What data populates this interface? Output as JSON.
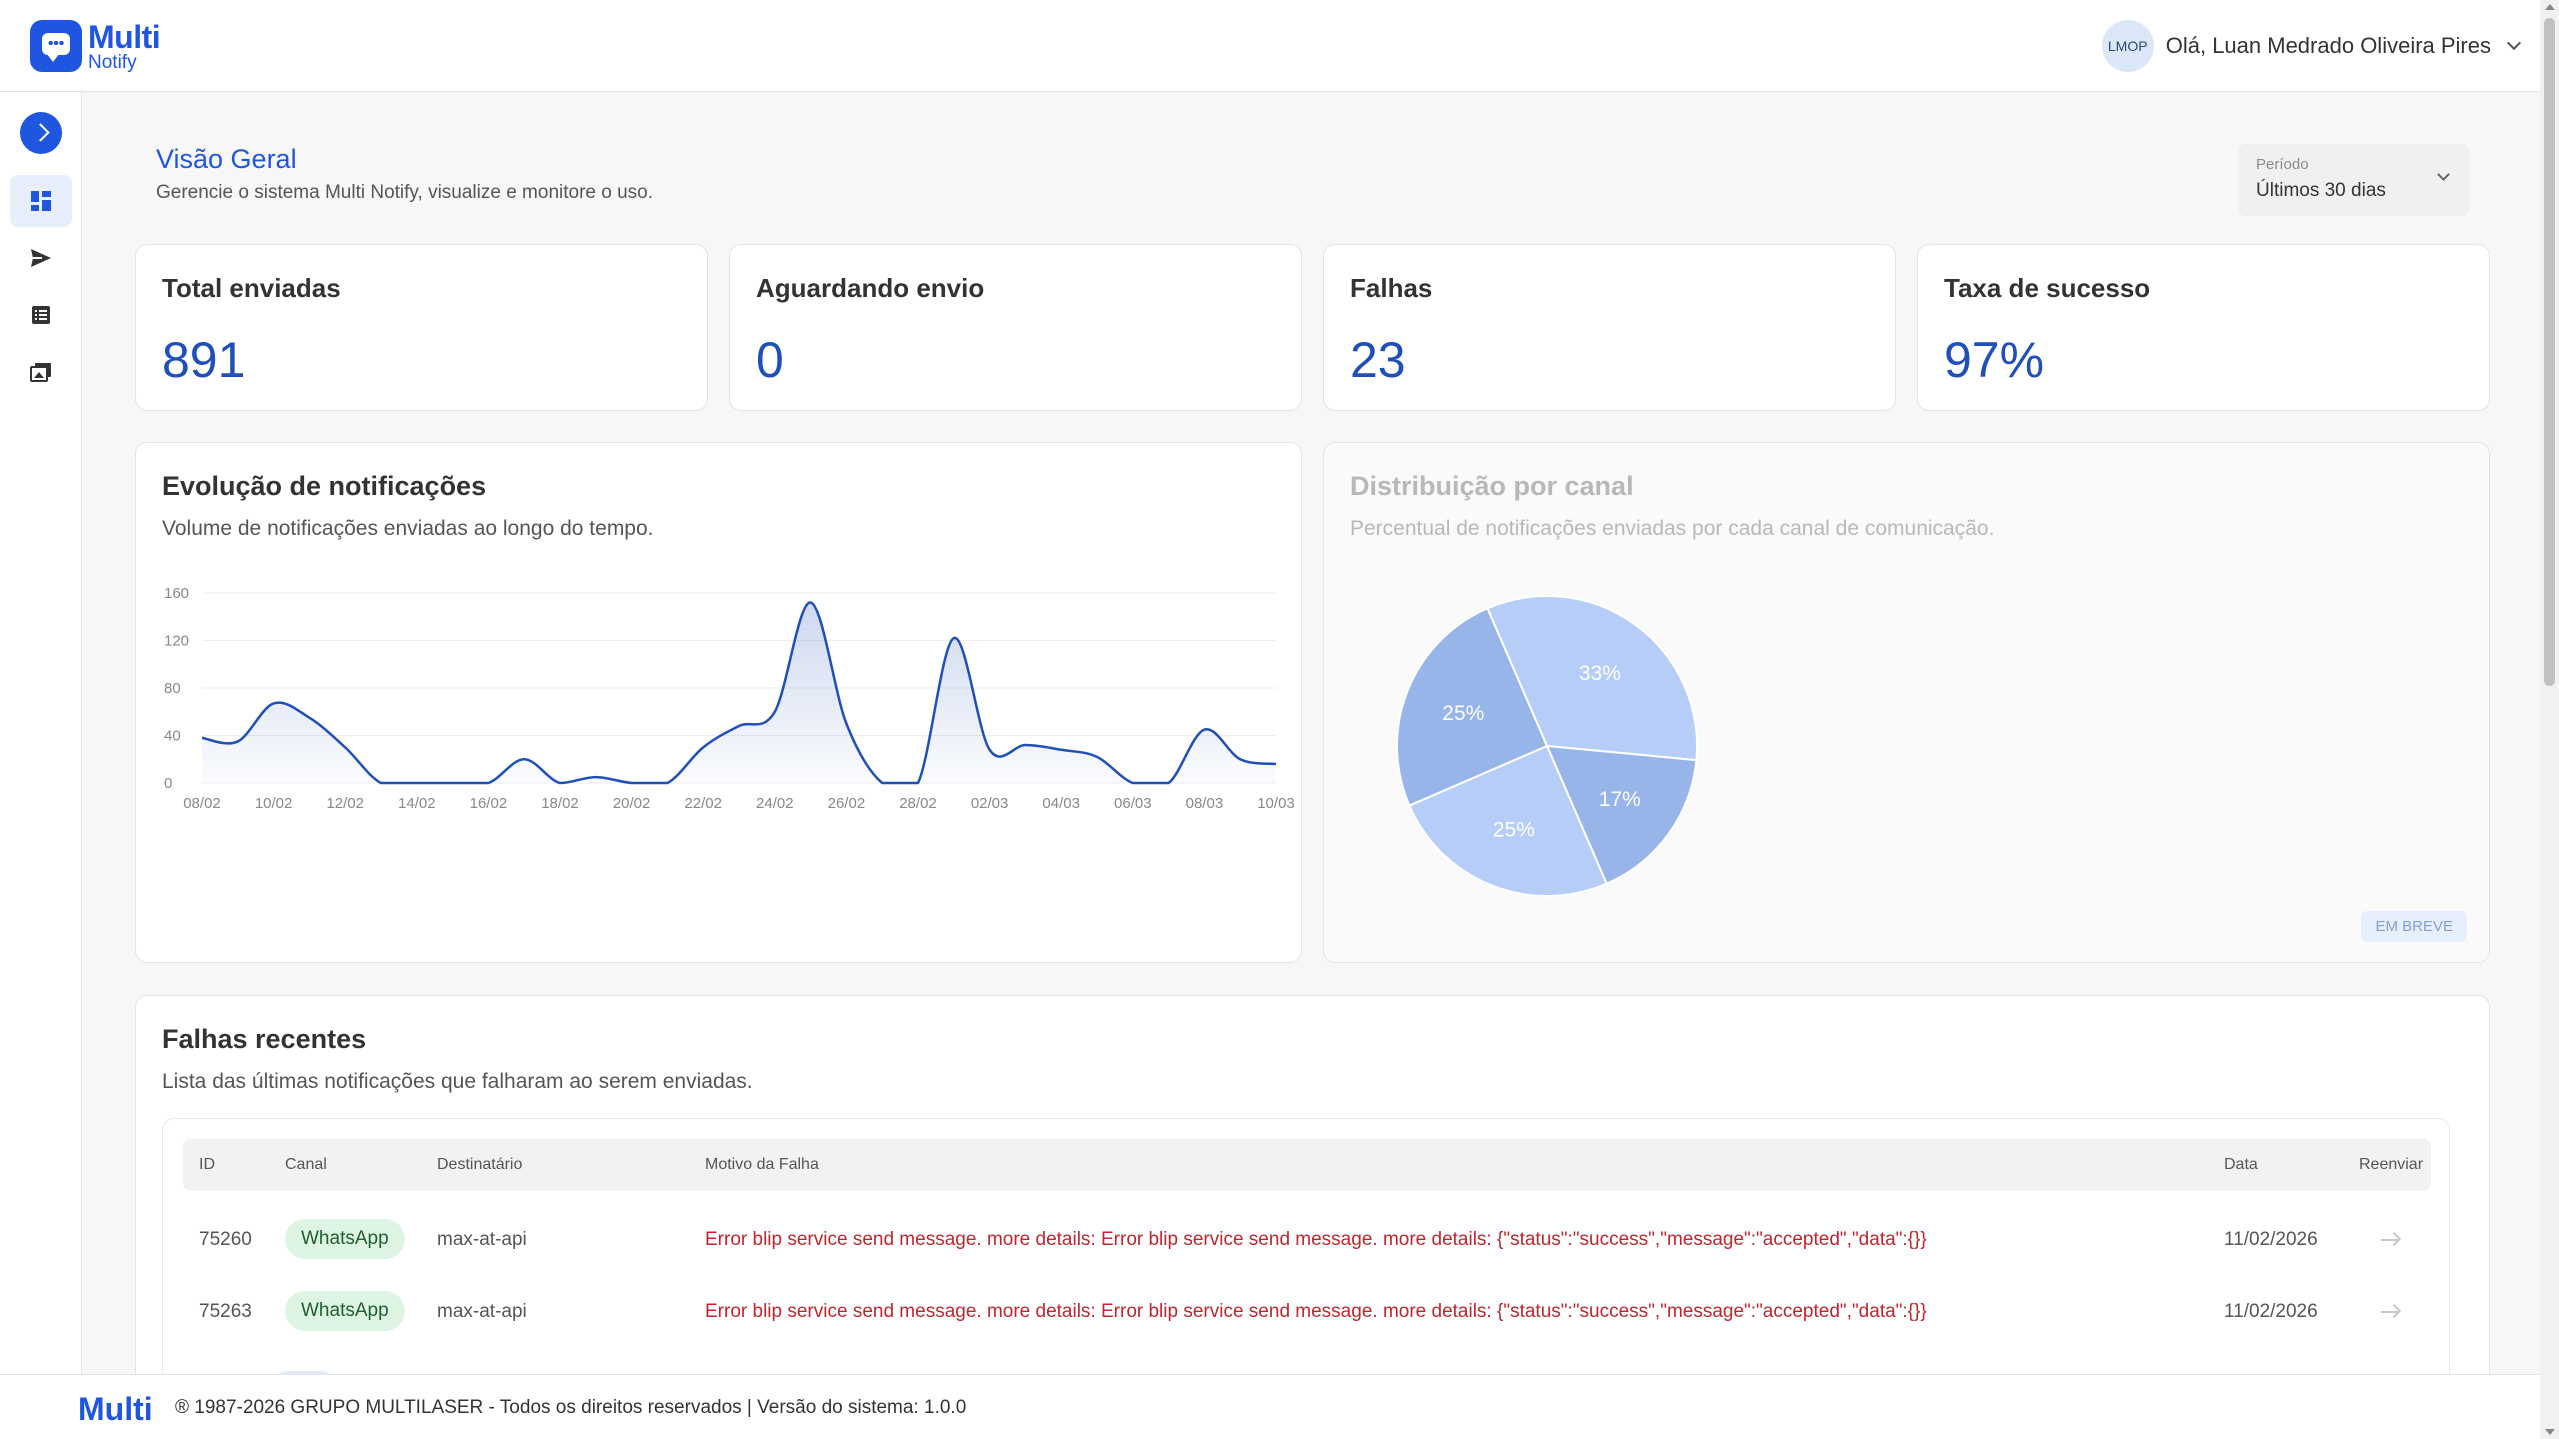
{
  "brand": {
    "name_line1": "Multi",
    "name_line2": "Notify",
    "accent": "#1f56e0"
  },
  "header": {
    "avatar_initials": "LMOP",
    "greeting": "Olá, Luan Medrado Oliveira Pires"
  },
  "sidebar": {
    "items": [
      {
        "icon": "dashboard-icon",
        "active": true
      },
      {
        "icon": "send-icon",
        "active": false
      },
      {
        "icon": "list-icon",
        "active": false
      },
      {
        "icon": "templates-icon",
        "active": false
      }
    ]
  },
  "page": {
    "title": "Visão Geral",
    "subtitle": "Gerencie o sistema Multi Notify, visualize e monitore o uso."
  },
  "period": {
    "label": "Período",
    "value": "Últimos 30 dias"
  },
  "stats": [
    {
      "title": "Total enviadas",
      "value": "891"
    },
    {
      "title": "Aguardando envio",
      "value": "0"
    },
    {
      "title": "Falhas",
      "value": "23"
    },
    {
      "title": "Taxa de sucesso",
      "value": "97%"
    }
  ],
  "evolution": {
    "title": "Evolução de notificações",
    "subtitle": "Volume de notificações enviadas ao longo do tempo."
  },
  "distribution": {
    "title": "Distribuição por canal",
    "subtitle": "Percentual de notificações enviadas por cada canal de comunicação.",
    "badge": "EM BREVE"
  },
  "chart_data": [
    {
      "type": "area",
      "title": "Evolução de notificações",
      "x_ticks": [
        "08/02",
        "10/02",
        "12/02",
        "14/02",
        "16/02",
        "18/02",
        "20/02",
        "22/02",
        "24/02",
        "26/02",
        "28/02",
        "02/03",
        "04/03",
        "06/03",
        "08/03",
        "10/03"
      ],
      "y_ticks": [
        0,
        40,
        80,
        120,
        160
      ],
      "ylim": [
        0,
        160
      ],
      "grid": true,
      "x": [
        "08/02",
        "09/02",
        "10/02",
        "11/02",
        "12/02",
        "13/02",
        "14/02",
        "15/02",
        "16/02",
        "17/02",
        "18/02",
        "19/02",
        "20/02",
        "21/02",
        "22/02",
        "23/02",
        "24/02",
        "25/02",
        "26/02",
        "27/02",
        "28/02",
        "01/03",
        "02/03",
        "03/03",
        "04/03",
        "05/03",
        "06/03",
        "07/03",
        "08/03",
        "09/03",
        "10/03"
      ],
      "values": [
        38,
        35,
        67,
        55,
        30,
        0,
        0,
        0,
        0,
        20,
        0,
        5,
        0,
        0,
        30,
        48,
        60,
        152,
        50,
        0,
        0,
        122,
        28,
        32,
        28,
        22,
        0,
        0,
        45,
        20,
        16
      ],
      "color": "#1f4fb8"
    },
    {
      "type": "pie",
      "title": "Distribuição por canal",
      "values": [
        33,
        17,
        25,
        25
      ],
      "labels": [
        "33%",
        "17%",
        "25%",
        "25%"
      ],
      "colors": [
        "#b5cdf7",
        "#98b5ea",
        "#b5cdf7",
        "#98b5ea"
      ]
    }
  ],
  "failures": {
    "title": "Falhas recentes",
    "subtitle": "Lista das últimas notificações que falharam ao serem enviadas.",
    "columns": [
      "ID",
      "Canal",
      "Destinatário",
      "Motivo da Falha",
      "Data",
      "Reenviar"
    ],
    "rows": [
      {
        "id": "75260",
        "channel": "WhatsApp",
        "recipient": "max-at-api",
        "reason": "Error blip service send message. more details: Error blip service send message. more details: {\"status\":\"success\",\"message\":\"accepted\",\"data\":{}}",
        "date": "11/02/2026"
      },
      {
        "id": "75263",
        "channel": "WhatsApp",
        "recipient": "max-at-api",
        "reason": "Error blip service send message. more details: Error blip service send message. more details: {\"status\":\"success\",\"message\":\"accepted\",\"data\":{}}",
        "date": "11/02/2026"
      }
    ]
  },
  "footer": {
    "logo": "Multi",
    "text": "® 1987-2026 GRUPO MULTILASER - Todos os direitos reservados | Versão do sistema: 1.0.0"
  }
}
